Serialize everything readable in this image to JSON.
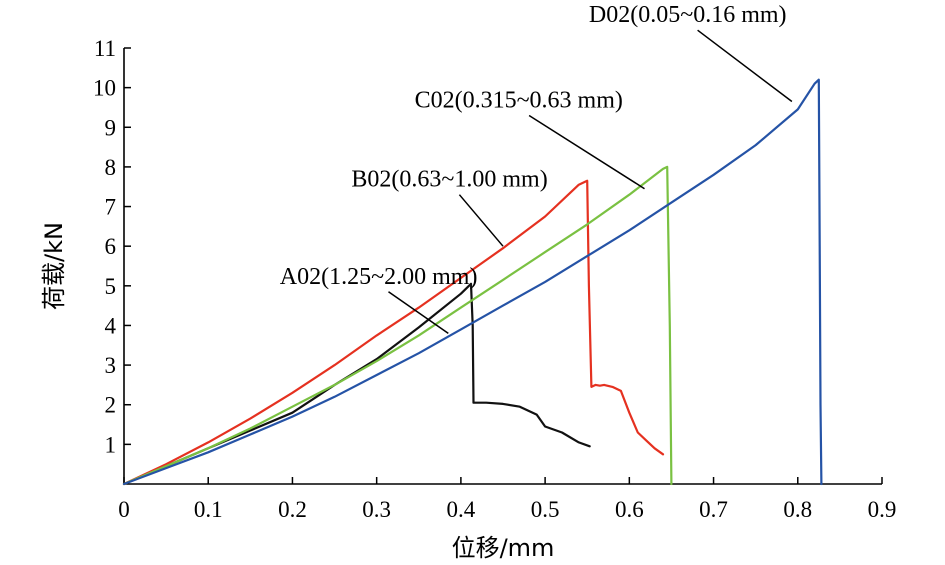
{
  "chart_data": {
    "type": "line",
    "xlabel": "位移/mm",
    "ylabel": "荷载/kN",
    "xlim": [
      0,
      0.9
    ],
    "ylim": [
      0,
      11
    ],
    "x_ticks": [
      0,
      0.1,
      0.2,
      0.3,
      0.4,
      0.5,
      0.6,
      0.7,
      0.8,
      0.9
    ],
    "x_tick_labels": [
      "0",
      "0.1",
      "0.2",
      "0.3",
      "0.4",
      "0.5",
      "0.6",
      "0.7",
      "0.8",
      "0.9"
    ],
    "y_ticks": [
      1,
      2,
      3,
      4,
      5,
      6,
      7,
      8,
      9,
      10,
      11
    ],
    "y_tick_labels": [
      "1",
      "2",
      "3",
      "4",
      "5",
      "6",
      "7",
      "8",
      "9",
      "10",
      "11"
    ],
    "grid": false,
    "legend": "annotations with leader lines",
    "series": [
      {
        "name": "A02(1.25~2.00 mm)",
        "color": "#111111",
        "x": [
          0,
          0.05,
          0.1,
          0.15,
          0.2,
          0.25,
          0.3,
          0.35,
          0.4,
          0.412,
          0.414,
          0.415,
          0.42,
          0.43,
          0.45,
          0.47,
          0.49,
          0.5,
          0.52,
          0.54,
          0.553
        ],
        "y": [
          0,
          0.45,
          0.9,
          1.35,
          1.8,
          2.5,
          3.15,
          3.95,
          4.8,
          5.05,
          4.0,
          2.05,
          2.05,
          2.05,
          2.02,
          1.95,
          1.75,
          1.45,
          1.3,
          1.05,
          0.95
        ],
        "annotation": {
          "text_x": 0.185,
          "text_y": 5.05,
          "tip_x": 0.385,
          "tip_y": 3.8
        }
      },
      {
        "name": "B02(0.63~1.00 mm)",
        "color": "#e53120",
        "x": [
          0,
          0.05,
          0.1,
          0.15,
          0.2,
          0.25,
          0.3,
          0.35,
          0.4,
          0.45,
          0.5,
          0.54,
          0.55,
          0.552,
          0.555,
          0.56,
          0.565,
          0.57,
          0.58,
          0.59,
          0.6,
          0.61,
          0.62,
          0.63,
          0.64
        ],
        "y": [
          0,
          0.5,
          1.05,
          1.65,
          2.3,
          3.0,
          3.75,
          4.45,
          5.2,
          5.95,
          6.75,
          7.55,
          7.65,
          5.0,
          2.45,
          2.5,
          2.48,
          2.5,
          2.45,
          2.35,
          1.8,
          1.3,
          1.1,
          0.9,
          0.75
        ],
        "annotation": {
          "text_x": 0.27,
          "text_y": 7.5,
          "tip_x": 0.45,
          "tip_y": 6.0
        }
      },
      {
        "name": "C02(0.315~0.63 mm)",
        "color": "#7ac142",
        "x": [
          0,
          0.05,
          0.1,
          0.15,
          0.2,
          0.25,
          0.3,
          0.35,
          0.4,
          0.45,
          0.5,
          0.55,
          0.6,
          0.64,
          0.645,
          0.648,
          0.65
        ],
        "y": [
          0,
          0.45,
          0.9,
          1.4,
          1.95,
          2.5,
          3.1,
          3.75,
          4.45,
          5.15,
          5.85,
          6.55,
          7.3,
          7.95,
          8.0,
          4.0,
          0
        ],
        "annotation": {
          "text_x": 0.345,
          "text_y": 9.5,
          "tip_x": 0.618,
          "tip_y": 7.45
        }
      },
      {
        "name": "D02(0.05~0.16 mm)",
        "color": "#2553a6",
        "x": [
          0,
          0.05,
          0.1,
          0.15,
          0.2,
          0.25,
          0.3,
          0.35,
          0.4,
          0.45,
          0.5,
          0.55,
          0.6,
          0.65,
          0.7,
          0.75,
          0.8,
          0.82,
          0.825,
          0.826,
          0.827,
          0.828
        ],
        "y": [
          0,
          0.4,
          0.8,
          1.25,
          1.7,
          2.2,
          2.75,
          3.3,
          3.9,
          4.5,
          5.1,
          5.75,
          6.4,
          7.1,
          7.8,
          8.55,
          9.45,
          10.1,
          10.2,
          6.0,
          2.0,
          0
        ],
        "annotation": {
          "text_x": 0.552,
          "text_y": 11.65,
          "tip_x": 0.793,
          "tip_y": 9.65
        }
      }
    ]
  }
}
